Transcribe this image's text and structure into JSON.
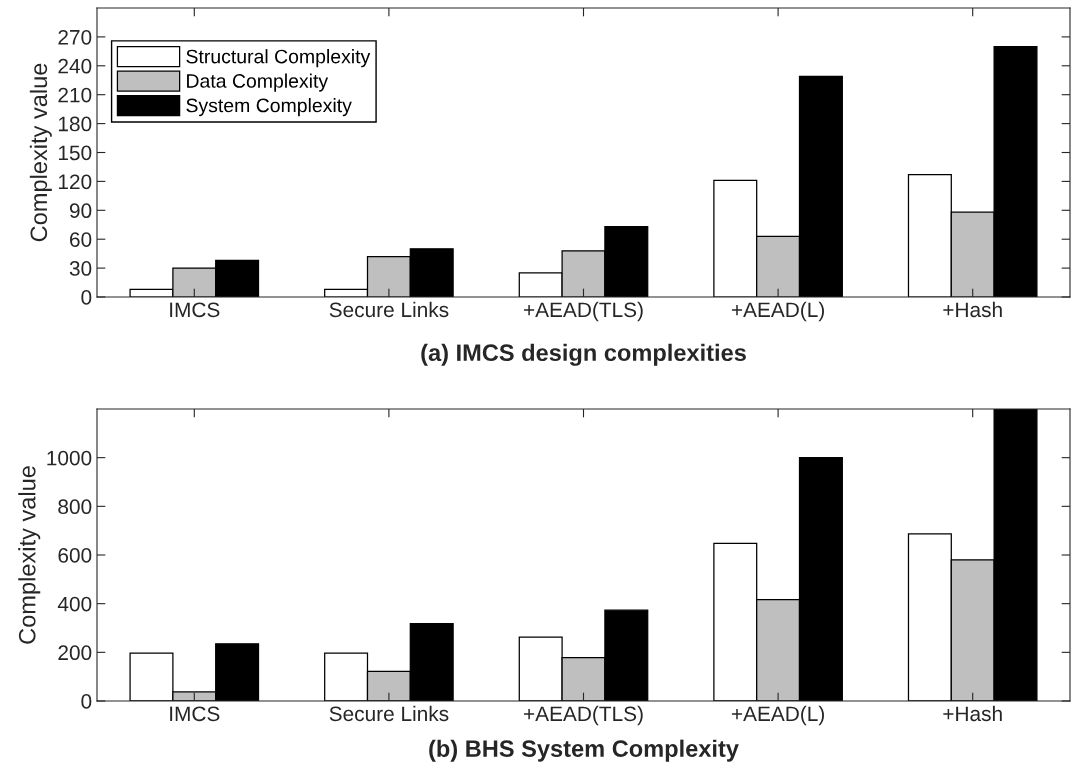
{
  "chart_data": [
    {
      "type": "bar",
      "title": "(a) IMCS design complexities",
      "ylabel": "Complexity value",
      "categories": [
        "IMCS",
        "Secure Links",
        "+AEAD(TLS)",
        "+AEAD(L)",
        "+Hash"
      ],
      "series": [
        {
          "name": "Structural Complexity",
          "color": "#ffffff",
          "values": [
            8,
            8,
            25,
            121,
            127
          ]
        },
        {
          "name": "Data Complexity",
          "color": "#bfbfbf",
          "values": [
            30,
            42,
            48,
            63,
            88
          ]
        },
        {
          "name": "System Complexity",
          "color": "#000000",
          "values": [
            38,
            50,
            73,
            229,
            260
          ]
        }
      ],
      "ylim": [
        0,
        300
      ],
      "yticks": [
        0,
        30,
        60,
        90,
        120,
        150,
        180,
        210,
        240,
        270
      ],
      "grid": false,
      "legend": "top left"
    },
    {
      "type": "bar",
      "title": "(b) BHS System Complexity",
      "ylabel": "Complexity value",
      "categories": [
        "IMCS",
        "Secure Links",
        "+AEAD(TLS)",
        "+AEAD(L)",
        "+Hash"
      ],
      "series": [
        {
          "color": "#ffffff",
          "values": [
            197,
            197,
            263,
            648,
            687
          ]
        },
        {
          "color": "#bfbfbf",
          "values": [
            37,
            122,
            178,
            417,
            580
          ]
        },
        {
          "color": "#000000",
          "values": [
            235,
            318,
            373,
            1000,
            1200
          ]
        }
      ],
      "ylim": [
        0,
        1200
      ],
      "yticks": [
        0,
        200,
        400,
        600,
        800,
        1000
      ],
      "grid": false,
      "legend": false
    }
  ]
}
